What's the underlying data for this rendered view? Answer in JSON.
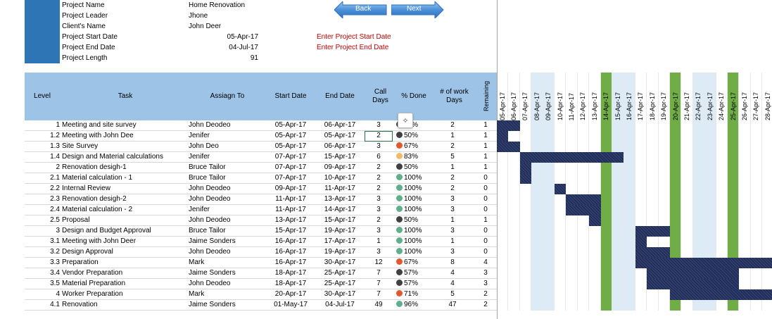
{
  "project": {
    "name_label": "Project Name",
    "name_value": "Home Renovation",
    "leader_label": "Project Leader",
    "leader_value": "Jhone",
    "client_label": "Client's Name",
    "client_value": "John Deer",
    "start_label": "Project Start Date",
    "start_value": "05-Apr-17",
    "end_label": "Project End Date",
    "end_value": "04-Jul-17",
    "length_label": "Project Length",
    "length_value": "91",
    "start_note": "Enter Project Start Date",
    "end_note": "Enter Project End Date"
  },
  "nav": {
    "back_label": "Back",
    "next_label": "Next"
  },
  "headers": {
    "level": "Level",
    "task": "Task",
    "assign": "Assiagn To",
    "start": "Start Date",
    "end": "End Date",
    "call_days": "Call Days",
    "done": "% Done",
    "work_days": "# of work Days",
    "remaining": "Remaining"
  },
  "dates": [
    "05-Apr-17",
    "06-Apr-17",
    "07-Apr-17",
    "08-Apr-17",
    "09-Apr-17",
    "10-Apr-17",
    "11-Apr-17",
    "12-Apr-17",
    "13-Apr-17",
    "14-Apr-17",
    "15-Apr-17",
    "16-Apr-17",
    "17-Apr-17",
    "18-Apr-17",
    "19-Apr-17",
    "20-Apr-17",
    "21-Apr-17",
    "22-Apr-17",
    "23-Apr-17",
    "24-Apr-17",
    "25-Apr-17",
    "26-Apr-17",
    "27-Apr-17",
    "28-Apr-17"
  ],
  "weekend_days": [
    3,
    4,
    10,
    11,
    17,
    18
  ],
  "holiday_days": [
    9,
    15,
    20
  ],
  "colors": {
    "header": "#9dc3e6",
    "bar": "#1f2d5a",
    "weekend": "#ddebf7",
    "holiday": "#70ad47",
    "brand": "#2e75b6"
  },
  "tasks": [
    {
      "level": "1",
      "task": "Meeting and site survey",
      "assign": "John Deodeo",
      "start": "05-Apr-17",
      "end": "06-Apr-17",
      "days": "3",
      "done": "67%",
      "dot": "#404040",
      "work": "2",
      "rem": "1",
      "bar_start": 0,
      "bar_len": 2
    },
    {
      "level": "1.2",
      "task": "Meeting with John Dee",
      "assign": "Jenifer",
      "start": "05-Apr-17",
      "end": "05-Apr-17",
      "days": "2",
      "done": "50%",
      "dot": "#404040",
      "work": "1",
      "rem": "1",
      "bar_start": 0,
      "bar_len": 1
    },
    {
      "level": "1.3",
      "task": "Site Survey",
      "assign": "John Deo",
      "start": "05-Apr-17",
      "end": "06-Apr-17",
      "days": "3",
      "done": "67%",
      "dot": "#e0582b",
      "work": "2",
      "rem": "1",
      "bar_start": 0,
      "bar_len": 2
    },
    {
      "level": "1.4",
      "task": "Design and Material calculations",
      "assign": "Jenifer",
      "start": "07-Apr-17",
      "end": "15-Apr-17",
      "days": "6",
      "done": "83%",
      "dot": "#f4b96b",
      "work": "5",
      "rem": "1",
      "bar_start": 2,
      "bar_len": 9
    },
    {
      "level": "2",
      "task": "Renovation desigh-1",
      "assign": "Bruce Tailor",
      "start": "07-Apr-17",
      "end": "09-Apr-17",
      "days": "2",
      "done": "50%",
      "dot": "#404040",
      "work": "1",
      "rem": "1",
      "bar_start": 2,
      "bar_len": 1
    },
    {
      "level": "2.1",
      "task": "Material calculation - 1",
      "assign": "Bruce Tailor",
      "start": "07-Apr-17",
      "end": "10-Apr-17",
      "days": "2",
      "done": "100%",
      "dot": "#5fae8c",
      "work": "2",
      "rem": "0",
      "bar_start": 2,
      "bar_len": 1
    },
    {
      "level": "2.2",
      "task": "Internal Review",
      "assign": "John Deodeo",
      "start": "09-Apr-17",
      "end": "11-Apr-17",
      "days": "2",
      "done": "100%",
      "dot": "#5fae8c",
      "work": "2",
      "rem": "0",
      "bar_start": 5,
      "bar_len": 1
    },
    {
      "level": "2.3",
      "task": "Renovation desigh-2",
      "assign": "John Deodeo",
      "start": "11-Apr-17",
      "end": "13-Apr-17",
      "days": "3",
      "done": "100%",
      "dot": "#5fae8c",
      "work": "3",
      "rem": "0",
      "bar_start": 6,
      "bar_len": 3
    },
    {
      "level": "2.4",
      "task": "Material calculation - 2",
      "assign": "Jenifer",
      "start": "11-Apr-17",
      "end": "14-Apr-17",
      "days": "3",
      "done": "100%",
      "dot": "#5fae8c",
      "work": "3",
      "rem": "0",
      "bar_start": 6,
      "bar_len": 3
    },
    {
      "level": "2.5",
      "task": "Proposal",
      "assign": "John Deodeo",
      "start": "13-Apr-17",
      "end": "15-Apr-17",
      "days": "2",
      "done": "50%",
      "dot": "#404040",
      "work": "1",
      "rem": "1",
      "bar_start": 8,
      "bar_len": 1
    },
    {
      "level": "3",
      "task": "Design and Budget Approval",
      "assign": "Bruce Tailor",
      "start": "15-Apr-17",
      "end": "19-Apr-17",
      "days": "3",
      "done": "100%",
      "dot": "#5fae8c",
      "work": "3",
      "rem": "0",
      "bar_start": 12,
      "bar_len": 3
    },
    {
      "level": "3.1",
      "task": "Meeting with John Deer",
      "assign": "Jaime Sonders",
      "start": "16-Apr-17",
      "end": "17-Apr-17",
      "days": "1",
      "done": "100%",
      "dot": "#5fae8c",
      "work": "1",
      "rem": "0",
      "bar_start": 12,
      "bar_len": 1
    },
    {
      "level": "3.2",
      "task": "Design Approval",
      "assign": "John Deodeo",
      "start": "16-Apr-17",
      "end": "19-Apr-17",
      "days": "3",
      "done": "100%",
      "dot": "#5fae8c",
      "work": "3",
      "rem": "0",
      "bar_start": 12,
      "bar_len": 3
    },
    {
      "level": "3.3",
      "task": "Preparation",
      "assign": "Mark",
      "start": "16-Apr-17",
      "end": "30-Apr-17",
      "days": "12",
      "done": "67%",
      "dot": "#e0582b",
      "work": "8",
      "rem": "4",
      "bar_start": 12,
      "bar_len": 12
    },
    {
      "level": "3.4",
      "task": "Vendor Preparation",
      "assign": "Jaime Sonders",
      "start": "18-Apr-17",
      "end": "25-Apr-17",
      "days": "7",
      "done": "57%",
      "dot": "#404040",
      "work": "4",
      "rem": "3",
      "bar_start": 13,
      "bar_len": 8
    },
    {
      "level": "3.5",
      "task": "Material Preparation",
      "assign": "John Deodeo",
      "start": "18-Apr-17",
      "end": "25-Apr-17",
      "days": "7",
      "done": "57%",
      "dot": "#404040",
      "work": "4",
      "rem": "3",
      "bar_start": 13,
      "bar_len": 8
    },
    {
      "level": "4",
      "task": "Worker Preparation",
      "assign": "Mark",
      "start": "20-Apr-17",
      "end": "30-Apr-17",
      "days": "7",
      "done": "71%",
      "dot": "#e0582b",
      "work": "5",
      "rem": "2",
      "bar_start": 15,
      "bar_len": 9
    },
    {
      "level": "4.1",
      "task": "Renovation",
      "assign": "Jaime Sonders",
      "start": "01-May-17",
      "end": "04-Jul-17",
      "days": "49",
      "done": "96%",
      "dot": "#5fae8c",
      "work": "47",
      "rem": "2",
      "bar_start": -1,
      "bar_len": 0
    }
  ]
}
